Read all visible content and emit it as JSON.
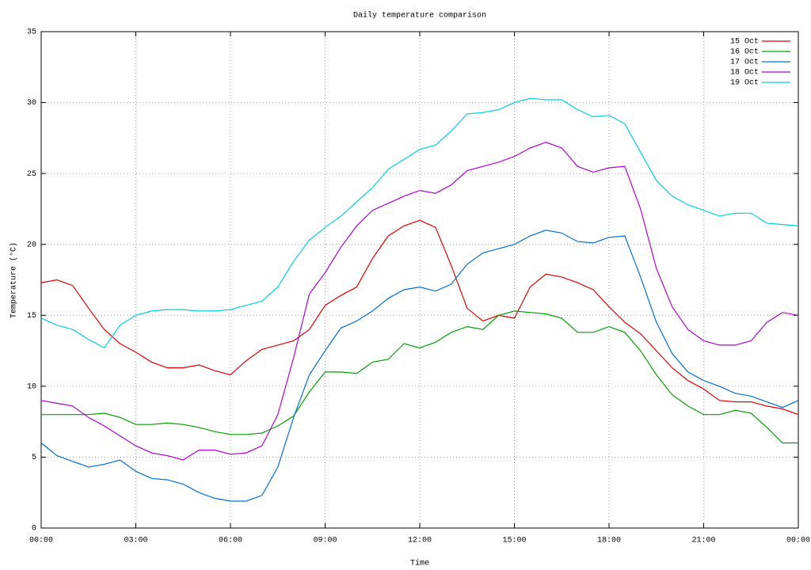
{
  "chart_data": {
    "type": "line",
    "title": "Daily temperature comparison",
    "xlabel": "Time",
    "ylabel": "Temperature (°C)",
    "x": [
      0,
      0.5,
      1,
      1.5,
      2,
      2.5,
      3,
      3.5,
      4,
      4.5,
      5,
      5.5,
      6,
      6.5,
      7,
      7.5,
      8,
      8.5,
      9,
      9.5,
      10,
      10.5,
      11,
      11.5,
      12,
      12.5,
      13,
      13.5,
      14,
      14.5,
      15,
      15.5,
      16,
      16.5,
      17,
      17.5,
      18,
      18.5,
      19,
      19.5,
      20,
      20.5,
      21,
      21.5,
      22,
      22.5,
      23,
      23.5,
      24
    ],
    "series": [
      {
        "name": "15 Oct",
        "color": "#e00000",
        "values": [
          17.3,
          17.5,
          17.1,
          15.5,
          14.0,
          13.0,
          12.4,
          11.7,
          11.3,
          11.3,
          11.5,
          11.1,
          10.8,
          11.8,
          12.6,
          12.9,
          13.2,
          14.0,
          15.7,
          16.4,
          17.0,
          19.0,
          20.6,
          21.3,
          21.7,
          21.2,
          18.5,
          15.5,
          14.6,
          15.0,
          14.8,
          17.0,
          17.9,
          17.7,
          17.3,
          16.8,
          15.6,
          14.5,
          13.7,
          12.5,
          11.3,
          10.4,
          9.8,
          9.0,
          8.9,
          8.9,
          8.6,
          8.4,
          8.0
        ]
      },
      {
        "name": "16 Oct",
        "color": "#00a000",
        "values": [
          8.0,
          8.0,
          8.0,
          8.0,
          8.1,
          7.8,
          7.3,
          7.3,
          7.4,
          7.3,
          7.1,
          6.8,
          6.6,
          6.6,
          6.7,
          7.2,
          7.9,
          9.6,
          11.0,
          11.0,
          10.9,
          11.7,
          11.9,
          13.0,
          12.7,
          13.1,
          13.8,
          14.2,
          14.0,
          15.0,
          15.3,
          15.2,
          15.1,
          14.8,
          13.8,
          13.8,
          14.2,
          13.8,
          12.5,
          10.8,
          9.4,
          8.6,
          8.0,
          8.0,
          8.3,
          8.1,
          7.1,
          6.0,
          6.0
        ]
      },
      {
        "name": "17 Oct",
        "color": "#0070d0",
        "values": [
          6.0,
          5.1,
          4.7,
          4.3,
          4.5,
          4.8,
          4.0,
          3.5,
          3.4,
          3.1,
          2.5,
          2.1,
          1.9,
          1.9,
          2.3,
          4.3,
          7.8,
          10.8,
          12.5,
          14.1,
          14.6,
          15.3,
          16.2,
          16.8,
          17.0,
          16.7,
          17.2,
          18.6,
          19.4,
          19.7,
          20.0,
          20.6,
          21.0,
          20.8,
          20.2,
          20.1,
          20.5,
          20.6,
          17.7,
          14.5,
          12.3,
          11.0,
          10.4,
          10.0,
          9.5,
          9.3,
          8.9,
          8.5,
          9.0
        ]
      },
      {
        "name": "18 Oct",
        "color": "#b000d0",
        "values": [
          9.0,
          8.8,
          8.6,
          7.8,
          7.2,
          6.5,
          5.8,
          5.3,
          5.1,
          4.8,
          5.5,
          5.5,
          5.2,
          5.3,
          5.8,
          8.0,
          12.0,
          16.5,
          18.0,
          19.8,
          21.3,
          22.4,
          22.9,
          23.4,
          23.8,
          23.6,
          24.2,
          25.2,
          25.5,
          25.8,
          26.2,
          26.8,
          27.2,
          26.8,
          25.5,
          25.1,
          25.4,
          25.5,
          22.5,
          18.3,
          15.6,
          14.0,
          13.2,
          12.9,
          12.9,
          13.2,
          14.5,
          15.2,
          15.0
        ]
      },
      {
        "name": "19 Oct",
        "color": "#00d0e0",
        "values": [
          14.8,
          14.3,
          14.0,
          13.3,
          12.7,
          14.3,
          15.0,
          15.3,
          15.4,
          15.4,
          15.3,
          15.3,
          15.4,
          15.7,
          16.0,
          17.0,
          18.8,
          20.3,
          21.2,
          22.0,
          23.0,
          24.0,
          25.3,
          26.0,
          26.7,
          27.0,
          28.0,
          29.2,
          29.3,
          29.5,
          30.0,
          30.3,
          30.2,
          30.2,
          29.5,
          29.0,
          29.1,
          28.5,
          26.5,
          24.5,
          23.4,
          22.8,
          22.4,
          22.0,
          22.2,
          22.2,
          21.5,
          21.4,
          21.3
        ]
      }
    ],
    "xlim": [
      0,
      24
    ],
    "xticks": [
      {
        "value": 0,
        "label": "00:00"
      },
      {
        "value": 3,
        "label": "03:00"
      },
      {
        "value": 6,
        "label": "06:00"
      },
      {
        "value": 9,
        "label": "09:00"
      },
      {
        "value": 12,
        "label": "12:00"
      },
      {
        "value": 15,
        "label": "15:00"
      },
      {
        "value": 18,
        "label": "18:00"
      },
      {
        "value": 21,
        "label": "21:00"
      },
      {
        "value": 24,
        "label": "00:00"
      }
    ],
    "ylim": [
      0,
      35
    ],
    "yticks": [
      0,
      5,
      10,
      15,
      20,
      25,
      30,
      35
    ],
    "grid": true,
    "legend": "top-right"
  }
}
